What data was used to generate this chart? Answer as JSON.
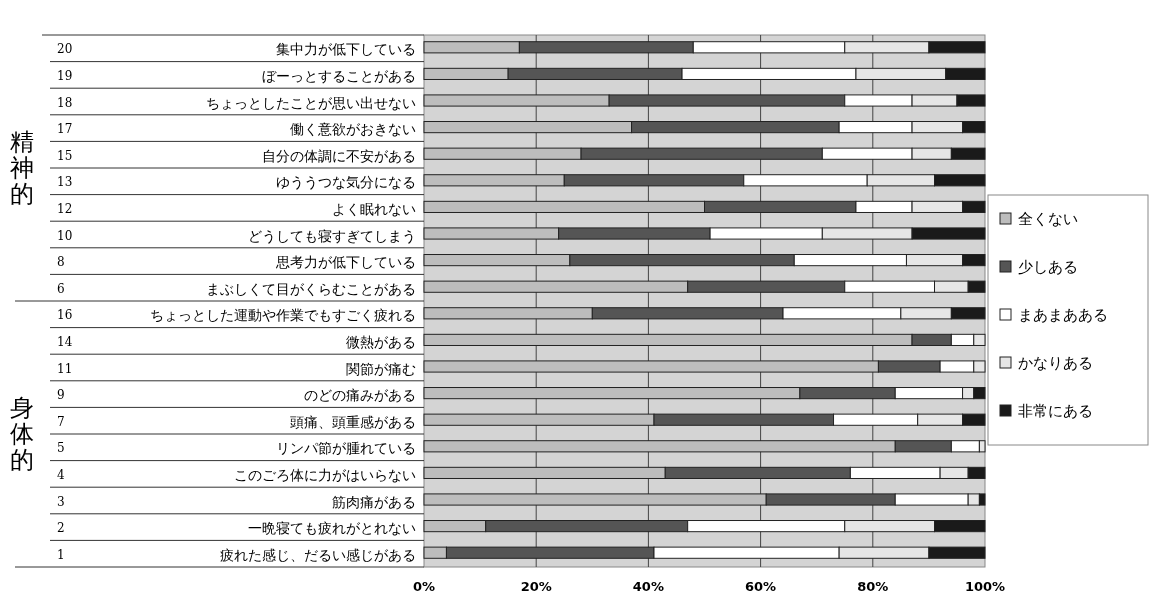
{
  "chart_data": {
    "type": "bar",
    "orientation": "horizontal",
    "stacked": true,
    "categories": [
      "20 集中力が低下している",
      "19 ぼーっとすることがある",
      "18 ちょっとしたことが思い出せない",
      "17 働く意欲がおきない",
      "15 自分の体調に不安がある",
      "13 ゆううつな気分になる",
      "12 よく眠れない",
      "10 どうしても寝すぎてしまう",
      "8 思考力が低下している",
      "6 まぶしくて目がくらむことがある",
      "16 ちょっとした運動や作業でもすごく疲れる",
      "14 微熱がある",
      "11 関節が痛む",
      "9 のどの痛みがある",
      "7 頭痛、頭重感がある",
      "5 リンパ節が腫れている",
      "4 このごろ体に力がはいらない",
      "3 筋肉痛がある",
      "2 一晩寝ても疲れがとれない",
      "1 疲れた感じ、だるい感じがある"
    ],
    "series": [
      {
        "name": "全くない",
        "color": "#bdbdbd",
        "values": [
          17,
          15,
          33,
          37,
          28,
          25,
          50,
          24,
          26,
          47,
          30,
          87,
          81,
          67,
          41,
          84,
          43,
          61,
          11,
          4
        ]
      },
      {
        "name": "少しある",
        "color": "#555555",
        "values": [
          31,
          31,
          42,
          37,
          43,
          32,
          27,
          27,
          40,
          28,
          34,
          7,
          11,
          17,
          32,
          10,
          33,
          23,
          36,
          37
        ]
      },
      {
        "name": "まあまあある",
        "color": "#ffffff",
        "values": [
          27,
          31,
          12,
          13,
          16,
          22,
          10,
          20,
          20,
          16,
          21,
          4,
          6,
          12,
          15,
          5,
          16,
          13,
          28,
          33
        ]
      },
      {
        "name": "かなりある",
        "color": "#e6e6e6",
        "values": [
          15,
          16,
          8,
          9,
          7,
          12,
          9,
          16,
          10,
          6,
          9,
          2,
          2,
          2,
          8,
          1,
          5,
          2,
          16,
          16
        ]
      },
      {
        "name": "非常にある",
        "color": "#1a1a1a",
        "values": [
          10,
          7,
          5,
          4,
          6,
          9,
          4,
          13,
          4,
          3,
          6,
          0,
          0,
          2,
          4,
          0,
          3,
          1,
          9,
          10
        ]
      }
    ],
    "xlim": [
      0,
      100
    ],
    "xticks": [
      {
        "value": 0,
        "label": "0%"
      },
      {
        "value": 20,
        "label": "20%"
      },
      {
        "value": 40,
        "label": "40%"
      },
      {
        "value": 60,
        "label": "60%"
      },
      {
        "value": 80,
        "label": "80%"
      },
      {
        "value": 100,
        "label": "100%"
      }
    ],
    "grid": "x",
    "legend": "right",
    "annotations": [
      "精神的",
      "身体的"
    ]
  }
}
